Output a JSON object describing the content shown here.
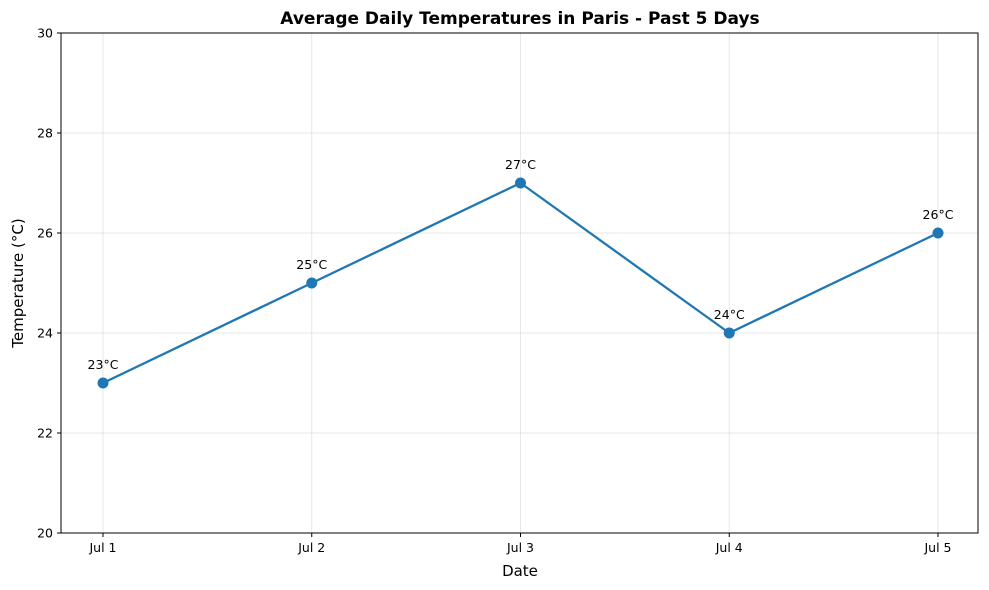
{
  "chart_data": {
    "type": "line",
    "title": "Average Daily Temperatures in Paris - Past 5 Days",
    "xlabel": "Date",
    "ylabel": "Temperature (°C)",
    "categories": [
      "Jul 1",
      "Jul 2",
      "Jul 3",
      "Jul 4",
      "Jul 5"
    ],
    "series": [
      {
        "values": [
          23,
          25,
          27,
          24,
          26
        ],
        "data_labels": [
          "23°C",
          "25°C",
          "27°C",
          "24°C",
          "26°C"
        ],
        "color": "#1f77b4"
      }
    ],
    "ylim": [
      20,
      30
    ],
    "yticks": [
      "20",
      "22",
      "24",
      "26",
      "28",
      "30"
    ],
    "grid": true,
    "legend": false
  }
}
